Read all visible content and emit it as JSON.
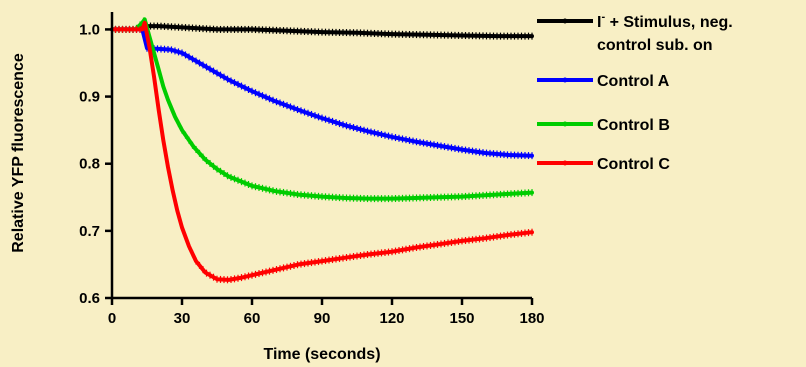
{
  "chart_data": {
    "type": "line",
    "title": "",
    "xlabel": "Time (seconds)",
    "ylabel": "Relative YFP fluorescence",
    "xlim": [
      0,
      180
    ],
    "ylim": [
      0.6,
      1.02
    ],
    "x_ticks": [
      0,
      30,
      60,
      90,
      120,
      150,
      180
    ],
    "y_ticks": [
      0.6,
      0.7,
      0.8,
      0.9,
      1.0
    ],
    "x_tick_labels": [
      "0",
      "30",
      "60",
      "90",
      "120",
      "150",
      "180"
    ],
    "y_tick_labels": [
      "0.6",
      "0.7",
      "0.8",
      "0.9",
      "1.0"
    ],
    "grid": false,
    "legend_position": "right",
    "series": [
      {
        "name": "I- + Stimulus, neg. control sub. on",
        "legend_line1_main": "I",
        "legend_line1_sup": "-",
        "legend_line1_rest": " + Stimulus, neg.",
        "legend_line2": "control sub. on",
        "color": "#000000",
        "x": [
          0,
          10,
          14,
          20,
          30,
          45,
          60,
          75,
          90,
          105,
          120,
          135,
          150,
          165,
          180
        ],
        "y": [
          1.0,
          1.0,
          1.005,
          1.005,
          1.003,
          1.0,
          1.0,
          0.998,
          0.996,
          0.995,
          0.993,
          0.992,
          0.991,
          0.99,
          0.99
        ]
      },
      {
        "name": "Control A",
        "color": "#0000FF",
        "x": [
          0,
          10,
          13,
          15,
          20,
          25,
          30,
          35,
          40,
          45,
          50,
          60,
          70,
          80,
          90,
          100,
          110,
          120,
          130,
          140,
          150,
          160,
          170,
          180
        ],
        "y": [
          1.0,
          1.0,
          1.0,
          0.972,
          0.971,
          0.97,
          0.965,
          0.955,
          0.945,
          0.935,
          0.925,
          0.908,
          0.893,
          0.88,
          0.868,
          0.857,
          0.848,
          0.84,
          0.833,
          0.827,
          0.821,
          0.816,
          0.813,
          0.812
        ]
      },
      {
        "name": "Control B",
        "color": "#00CC00",
        "x": [
          0,
          10,
          13,
          14,
          16,
          18,
          20,
          22,
          24,
          27,
          30,
          35,
          40,
          45,
          50,
          60,
          70,
          80,
          90,
          100,
          110,
          120,
          130,
          140,
          150,
          160,
          170,
          180
        ],
        "y": [
          1.0,
          1.0,
          1.01,
          1.015,
          0.99,
          0.965,
          0.94,
          0.915,
          0.895,
          0.87,
          0.85,
          0.825,
          0.806,
          0.792,
          0.781,
          0.767,
          0.759,
          0.754,
          0.751,
          0.749,
          0.748,
          0.748,
          0.749,
          0.75,
          0.751,
          0.753,
          0.755,
          0.757
        ]
      },
      {
        "name": "Control C",
        "color": "#FF0000",
        "x": [
          0,
          10,
          13,
          14,
          16,
          18,
          20,
          22,
          24,
          26,
          28,
          30,
          33,
          36,
          40,
          45,
          50,
          55,
          60,
          70,
          80,
          90,
          100,
          110,
          120,
          130,
          140,
          150,
          160,
          170,
          180
        ],
        "y": [
          1.0,
          1.0,
          1.0,
          1.01,
          0.975,
          0.93,
          0.88,
          0.835,
          0.795,
          0.76,
          0.73,
          0.705,
          0.677,
          0.655,
          0.638,
          0.628,
          0.627,
          0.63,
          0.634,
          0.642,
          0.65,
          0.655,
          0.66,
          0.665,
          0.669,
          0.675,
          0.68,
          0.685,
          0.689,
          0.694,
          0.698
        ]
      }
    ]
  }
}
